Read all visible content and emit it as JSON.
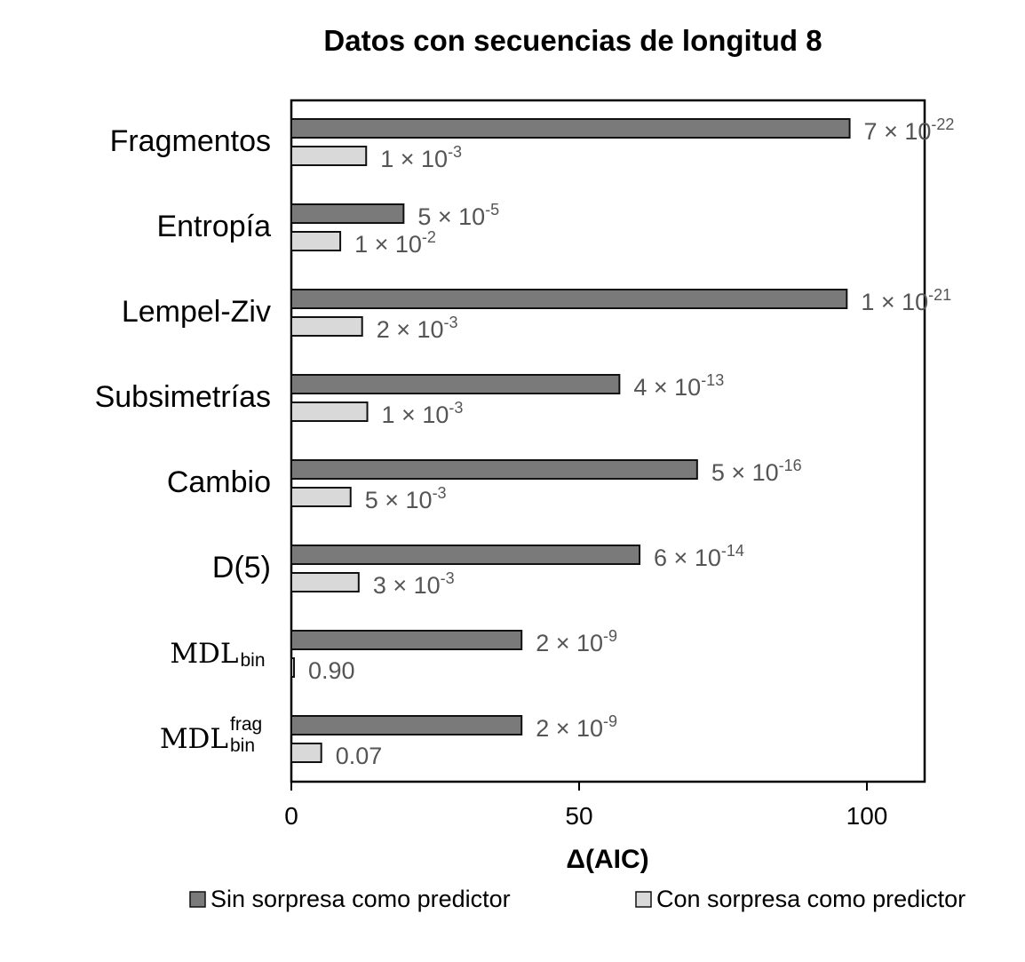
{
  "chart_data": {
    "type": "bar",
    "orientation": "horizontal",
    "title": "Datos con secuencias de longitud 8",
    "xlabel": "Δ(AIC)",
    "ylabel": "",
    "xlim": [
      0,
      110
    ],
    "xticks": [
      0,
      50,
      100
    ],
    "grid": false,
    "legend_position": "bottom",
    "categories": [
      {
        "main": "Fragmentos",
        "sub": "",
        "sup": ""
      },
      {
        "main": "Entropía",
        "sub": "",
        "sup": ""
      },
      {
        "main": "Lempel-Ziv",
        "sub": "",
        "sup": ""
      },
      {
        "main": "Subsimetrías",
        "sub": "",
        "sup": ""
      },
      {
        "main": "Cambio",
        "sub": "",
        "sup": ""
      },
      {
        "main": "D(5)",
        "sub": "",
        "sup": ""
      },
      {
        "main": "MDL",
        "sub": "bin",
        "sup": ""
      },
      {
        "main": "MDL",
        "sub": "bin",
        "sup": "frag"
      }
    ],
    "series": [
      {
        "name": "Sin sorpresa como predictor",
        "color": "#7a7a7a",
        "values": [
          97,
          19.5,
          96.5,
          57,
          70.5,
          60.5,
          40,
          40
        ],
        "labels": [
          {
            "base": "7 × 10",
            "exp": "-22"
          },
          {
            "base": "5 × 10",
            "exp": "-5"
          },
          {
            "base": "1 × 10",
            "exp": "-21"
          },
          {
            "base": "4 × 10",
            "exp": "-13"
          },
          {
            "base": "5 × 10",
            "exp": "-16"
          },
          {
            "base": "6 × 10",
            "exp": "-14"
          },
          {
            "base": "2 × 10",
            "exp": "-9"
          },
          {
            "base": "2 × 10",
            "exp": "-9"
          }
        ]
      },
      {
        "name": "Con sorpresa como predictor",
        "color": "#d9d9d9",
        "values": [
          13,
          8.5,
          12.3,
          13.2,
          10.3,
          11.7,
          0.2,
          5.2
        ],
        "labels": [
          {
            "base": "1 × 10",
            "exp": "-3"
          },
          {
            "base": "1 × 10",
            "exp": "-2"
          },
          {
            "base": "2 × 10",
            "exp": "-3"
          },
          {
            "base": "1 × 10",
            "exp": "-3"
          },
          {
            "base": "5 × 10",
            "exp": "-3"
          },
          {
            "base": "3 × 10",
            "exp": "-3"
          },
          {
            "base": "0.90",
            "exp": ""
          },
          {
            "base": "0.07",
            "exp": ""
          }
        ]
      }
    ]
  }
}
